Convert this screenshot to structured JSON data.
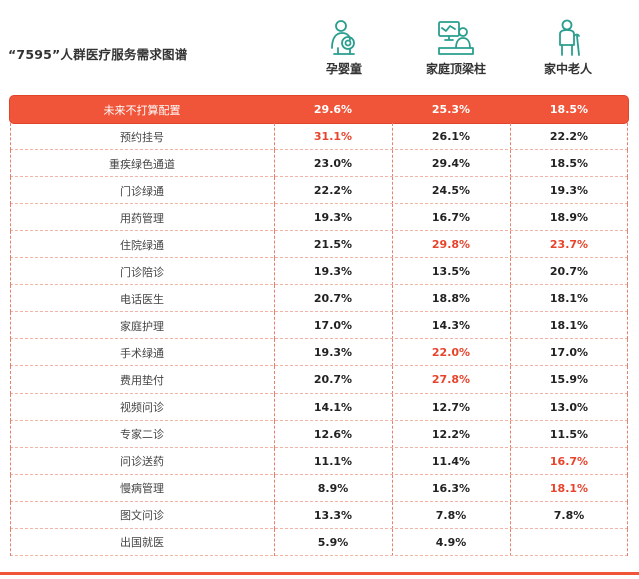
{
  "title": "“7595”人群医疗服务需求图谱",
  "colors": {
    "accent": "#f0553a",
    "highlight": "#e8442c",
    "icon": "#2a9e8e"
  },
  "chart_data": {
    "type": "table",
    "title": "“7595”人群医疗服务需求图谱",
    "columns": [
      {
        "name": "孕婴童",
        "icon": "mother-baby-icon"
      },
      {
        "name": "家庭顶梁柱",
        "icon": "office-worker-icon"
      },
      {
        "name": "家中老人",
        "icon": "elderly-person-icon"
      }
    ],
    "rows": [
      {
        "label": "未来不打算配置",
        "values": [
          "29.6%",
          "25.3%",
          "18.5%"
        ],
        "highlight": [
          false,
          false,
          false
        ]
      },
      {
        "label": "预约挂号",
        "values": [
          "31.1%",
          "26.1%",
          "22.2%"
        ],
        "highlight": [
          true,
          false,
          false
        ]
      },
      {
        "label": "重疾绿色通道",
        "values": [
          "23.0%",
          "29.4%",
          "18.5%"
        ],
        "highlight": [
          false,
          false,
          false
        ]
      },
      {
        "label": "门诊绿通",
        "values": [
          "22.2%",
          "24.5%",
          "19.3%"
        ],
        "highlight": [
          false,
          false,
          false
        ]
      },
      {
        "label": "用药管理",
        "values": [
          "19.3%",
          "16.7%",
          "18.9%"
        ],
        "highlight": [
          false,
          false,
          false
        ]
      },
      {
        "label": "住院绿通",
        "values": [
          "21.5%",
          "29.8%",
          "23.7%"
        ],
        "highlight": [
          false,
          true,
          true
        ]
      },
      {
        "label": "门诊陪诊",
        "values": [
          "19.3%",
          "13.5%",
          "20.7%"
        ],
        "highlight": [
          false,
          false,
          false
        ]
      },
      {
        "label": "电话医生",
        "values": [
          "20.7%",
          "18.8%",
          "18.1%"
        ],
        "highlight": [
          false,
          false,
          false
        ]
      },
      {
        "label": "家庭护理",
        "values": [
          "17.0%",
          "14.3%",
          "18.1%"
        ],
        "highlight": [
          false,
          false,
          false
        ]
      },
      {
        "label": "手术绿通",
        "values": [
          "19.3%",
          "22.0%",
          "17.0%"
        ],
        "highlight": [
          false,
          true,
          false
        ]
      },
      {
        "label": "费用垫付",
        "values": [
          "20.7%",
          "27.8%",
          "15.9%"
        ],
        "highlight": [
          false,
          true,
          false
        ]
      },
      {
        "label": "视频问诊",
        "values": [
          "14.1%",
          "12.7%",
          "13.0%"
        ],
        "highlight": [
          false,
          false,
          false
        ]
      },
      {
        "label": "专家二诊",
        "values": [
          "12.6%",
          "12.2%",
          "11.5%"
        ],
        "highlight": [
          false,
          false,
          false
        ]
      },
      {
        "label": "问诊送药",
        "values": [
          "11.1%",
          "11.4%",
          "16.7%"
        ],
        "highlight": [
          false,
          false,
          true
        ]
      },
      {
        "label": "慢病管理",
        "values": [
          "8.9%",
          "16.3%",
          "18.1%"
        ],
        "highlight": [
          false,
          false,
          true
        ]
      },
      {
        "label": "图文问诊",
        "values": [
          "13.3%",
          "7.8%",
          "7.8%"
        ],
        "highlight": [
          false,
          false,
          false
        ]
      },
      {
        "label": "出国就医",
        "values": [
          "5.9%",
          "4.9%",
          ""
        ],
        "highlight": [
          false,
          false,
          false
        ]
      }
    ]
  }
}
